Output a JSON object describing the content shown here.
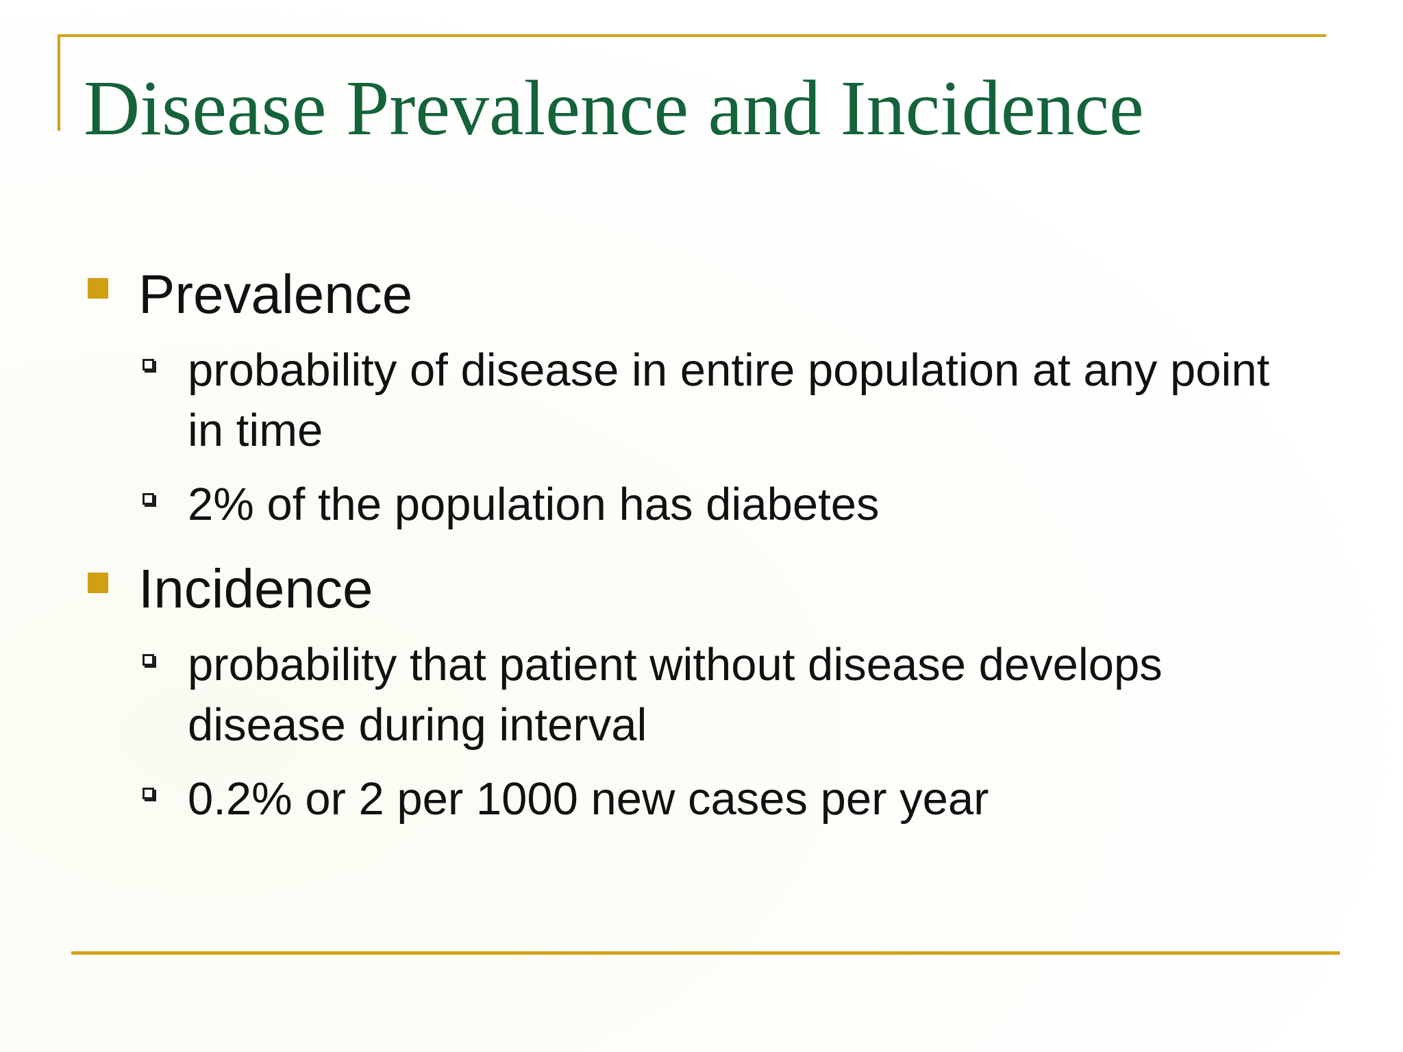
{
  "slide": {
    "title": "Disease Prevalence and Incidence",
    "colors": {
      "title": "#14633a",
      "rule": "#d1a319",
      "bullet_level1": "#d19f13",
      "text": "#111111"
    },
    "sections": [
      {
        "heading": "Prevalence",
        "bullet_icon": "gold-square-bullet",
        "points": [
          "probability of disease in entire population at any point in time",
          "2% of the population has diabetes"
        ]
      },
      {
        "heading": "Incidence",
        "bullet_icon": "gold-square-bullet",
        "points": [
          "probability that patient without disease develops disease during interval",
          "0.2% or 2 per 1000 new cases per year"
        ]
      }
    ],
    "sub_bullet_icon": "hollow-box-bullet"
  }
}
